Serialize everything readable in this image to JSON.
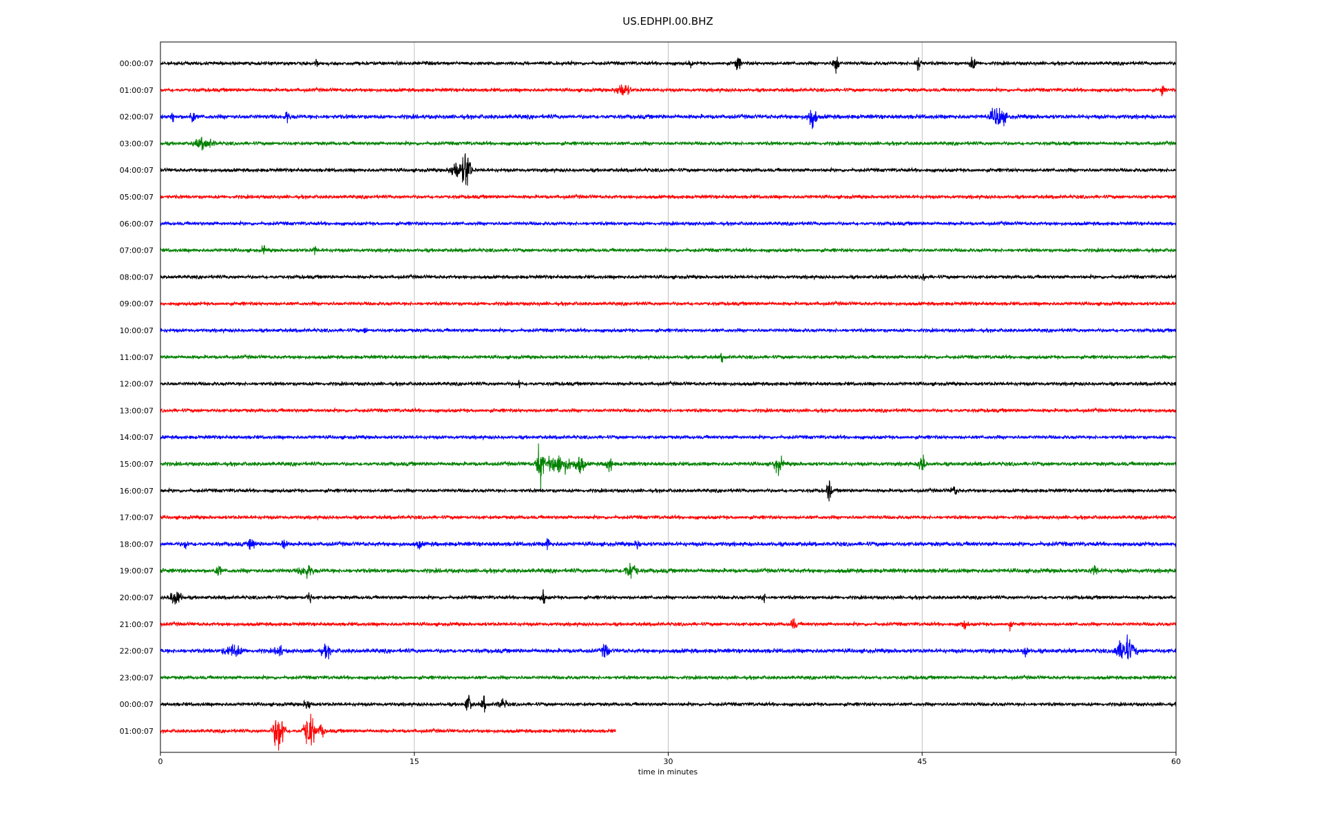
{
  "chart_data": {
    "type": "line",
    "title": "US.EDHPI.00.BHZ",
    "xlabel": "time in minutes",
    "xlim": [
      0,
      60
    ],
    "x_ticks": [
      "0",
      "15",
      "30",
      "45",
      "60"
    ],
    "x_tick_values": [
      0,
      15,
      30,
      45,
      60
    ],
    "grid": "vertical gridlines at 15, 30, 45",
    "color_cycle": [
      "#000000",
      "#ff0000",
      "#0000ff",
      "#008000"
    ],
    "rows": [
      {
        "label": "00:00:07",
        "color": "#000000",
        "end": 60,
        "noise": 1.0,
        "events": [
          [
            9.2,
            0.9,
            0.12
          ],
          [
            31.3,
            1.0,
            0.15
          ],
          [
            34.1,
            2.2,
            0.25
          ],
          [
            39.9,
            3.0,
            0.25
          ],
          [
            44.8,
            2.0,
            0.3
          ],
          [
            48.0,
            1.6,
            0.3
          ]
        ]
      },
      {
        "label": "01:00:07",
        "color": "#ff0000",
        "end": 60,
        "noise": 1.0,
        "events": [
          [
            27.3,
            1.8,
            0.6
          ],
          [
            59.2,
            2.0,
            0.15
          ]
        ]
      },
      {
        "label": "02:00:07",
        "color": "#0000ff",
        "end": 60,
        "noise": 1.2,
        "events": [
          [
            0.7,
            1.8,
            0.15
          ],
          [
            1.9,
            2.2,
            0.2
          ],
          [
            7.5,
            1.6,
            0.2
          ],
          [
            38.5,
            3.5,
            0.35
          ],
          [
            49.5,
            3.0,
            0.6
          ]
        ]
      },
      {
        "label": "03:00:07",
        "color": "#008000",
        "end": 60,
        "noise": 1.0,
        "events": [
          [
            2.6,
            1.5,
            0.8
          ]
        ]
      },
      {
        "label": "04:00:07",
        "color": "#000000",
        "end": 60,
        "noise": 1.0,
        "events": [
          [
            17.5,
            2.5,
            0.6
          ],
          [
            18.1,
            6.0,
            0.35
          ]
        ]
      },
      {
        "label": "05:00:07",
        "color": "#ff0000",
        "end": 60,
        "noise": 1.0,
        "events": []
      },
      {
        "label": "06:00:07",
        "color": "#0000ff",
        "end": 60,
        "noise": 1.0,
        "events": []
      },
      {
        "label": "07:00:07",
        "color": "#008000",
        "end": 60,
        "noise": 1.0,
        "events": [
          [
            6.1,
            1.5,
            0.15
          ],
          [
            9.1,
            1.5,
            0.15
          ]
        ]
      },
      {
        "label": "08:00:07",
        "color": "#000000",
        "end": 60,
        "noise": 1.0,
        "events": [
          [
            45.1,
            1.2,
            0.15
          ]
        ]
      },
      {
        "label": "09:00:07",
        "color": "#ff0000",
        "end": 60,
        "noise": 1.0,
        "events": []
      },
      {
        "label": "10:00:07",
        "color": "#0000ff",
        "end": 60,
        "noise": 1.0,
        "events": [
          [
            12.1,
            1.0,
            0.12
          ]
        ]
      },
      {
        "label": "11:00:07",
        "color": "#008000",
        "end": 60,
        "noise": 1.0,
        "events": [
          [
            33.2,
            1.2,
            0.15
          ]
        ]
      },
      {
        "label": "12:00:07",
        "color": "#000000",
        "end": 60,
        "noise": 1.0,
        "events": [
          [
            21.2,
            1.0,
            0.12
          ]
        ]
      },
      {
        "label": "13:00:07",
        "color": "#ff0000",
        "end": 60,
        "noise": 1.0,
        "events": []
      },
      {
        "label": "14:00:07",
        "color": "#0000ff",
        "end": 60,
        "noise": 1.0,
        "events": []
      },
      {
        "label": "15:00:07",
        "color": "#008000",
        "end": 60,
        "noise": 1.1,
        "events": [
          [
            22.4,
            6.5,
            0.3
          ],
          [
            23.5,
            2.5,
            1.2
          ],
          [
            24.8,
            2.5,
            0.4
          ],
          [
            26.5,
            2.0,
            0.3
          ],
          [
            36.5,
            2.2,
            0.4
          ],
          [
            45.0,
            2.5,
            0.3
          ]
        ]
      },
      {
        "label": "16:00:07",
        "color": "#000000",
        "end": 60,
        "noise": 1.0,
        "events": [
          [
            39.5,
            3.0,
            0.2
          ],
          [
            46.9,
            1.2,
            0.3
          ]
        ]
      },
      {
        "label": "17:00:07",
        "color": "#ff0000",
        "end": 60,
        "noise": 1.0,
        "events": []
      },
      {
        "label": "18:00:07",
        "color": "#0000ff",
        "end": 60,
        "noise": 1.2,
        "events": [
          [
            1.5,
            1.4,
            0.15
          ],
          [
            5.4,
            2.0,
            0.25
          ],
          [
            7.3,
            1.6,
            0.2
          ],
          [
            15.3,
            1.2,
            0.2
          ],
          [
            22.9,
            1.8,
            0.2
          ],
          [
            28.2,
            1.6,
            0.2
          ]
        ]
      },
      {
        "label": "19:00:07",
        "color": "#008000",
        "end": 60,
        "noise": 1.2,
        "events": [
          [
            3.4,
            1.2,
            0.3
          ],
          [
            8.6,
            1.6,
            0.6
          ],
          [
            27.8,
            2.2,
            0.5
          ],
          [
            55.2,
            1.4,
            0.3
          ]
        ]
      },
      {
        "label": "20:00:07",
        "color": "#000000",
        "end": 60,
        "noise": 1.0,
        "events": [
          [
            0.9,
            2.2,
            0.5
          ],
          [
            8.8,
            1.8,
            0.2
          ],
          [
            22.6,
            2.2,
            0.2
          ],
          [
            35.6,
            1.4,
            0.2
          ]
        ]
      },
      {
        "label": "21:00:07",
        "color": "#ff0000",
        "end": 60,
        "noise": 1.0,
        "events": [
          [
            37.4,
            1.3,
            0.3
          ],
          [
            47.5,
            1.2,
            0.3
          ],
          [
            50.2,
            1.0,
            0.15
          ]
        ]
      },
      {
        "label": "22:00:07",
        "color": "#0000ff",
        "end": 60,
        "noise": 1.2,
        "events": [
          [
            4.3,
            1.4,
            0.8
          ],
          [
            7.0,
            1.8,
            0.3
          ],
          [
            9.8,
            1.5,
            0.4
          ],
          [
            26.3,
            2.0,
            0.3
          ],
          [
            51.1,
            1.8,
            0.2
          ],
          [
            57.0,
            3.5,
            0.8
          ]
        ]
      },
      {
        "label": "23:00:07",
        "color": "#008000",
        "end": 60,
        "noise": 1.0,
        "events": []
      },
      {
        "label": "00:00:07",
        "color": "#000000",
        "end": 60,
        "noise": 1.0,
        "events": [
          [
            8.7,
            1.6,
            0.3
          ],
          [
            18.2,
            2.5,
            0.3
          ],
          [
            19.1,
            2.0,
            0.2
          ],
          [
            20.2,
            1.2,
            0.4
          ]
        ]
      },
      {
        "label": "01:00:07",
        "color": "#ff0000",
        "end": 26.9,
        "noise": 1.0,
        "events": [
          [
            7.0,
            5.5,
            0.5
          ],
          [
            8.8,
            5.0,
            0.5
          ],
          [
            9.5,
            1.5,
            0.3
          ]
        ]
      }
    ]
  }
}
